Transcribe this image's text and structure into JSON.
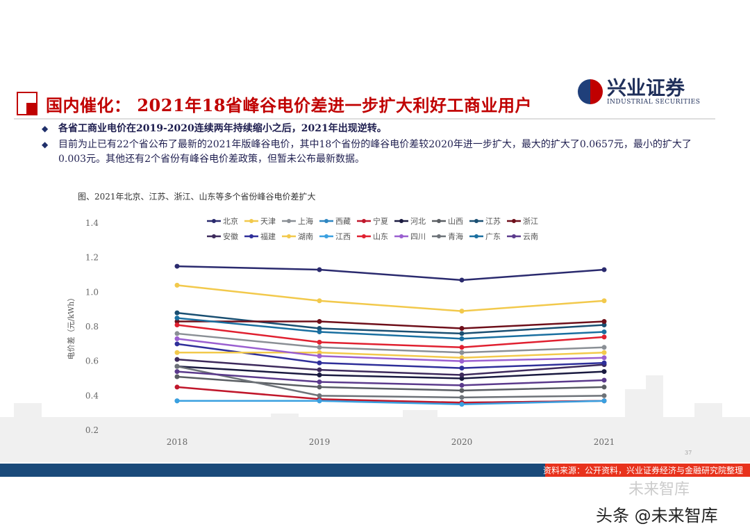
{
  "header": {
    "title": "国内催化：  2021年18省峰谷电价差进一步扩大利好工商业用户",
    "logo_cn": "兴业证券",
    "logo_en": "INDUSTRIAL SECURITIES"
  },
  "bullets": [
    {
      "text": "各省工商业电价在2019-2020连续两年持续缩小之后，2021年出现逆转。"
    },
    {
      "text": "目前为止已有22个省公布了最新的2021年版峰谷电价，其中18个省份的峰谷电价差较2020年进一步扩大，最大的扩大了0.0657元，最小的扩大了0.003元。其他还有2个省份有峰谷电价差政策，但暂未公布最新数据。"
    }
  ],
  "caption": "图、2021年北京、江苏、浙江、山东等多个省份峰谷电价差扩大",
  "footer": {
    "source": "资料来源：公开资料，兴业证券经济与金融研究院整理",
    "page": "37",
    "watermark1": "未来智库",
    "watermark2": "头条 @未来智库"
  },
  "chart_data": {
    "type": "line",
    "title": "",
    "xlabel": "",
    "ylabel": "电价差（元/kWh）",
    "categories": [
      "2018",
      "2019",
      "2020",
      "2021"
    ],
    "ylim": [
      0.2,
      1.4
    ],
    "yticks": [
      "0.2",
      "0.4",
      "0.6",
      "0.8",
      "1.0",
      "1.2",
      "1.4"
    ],
    "legend_position": "top",
    "series": [
      {
        "name": "北京",
        "color": "#2a2a6e",
        "values": [
          1.15,
          1.13,
          1.07,
          1.13
        ]
      },
      {
        "name": "天津",
        "color": "#f2c94c",
        "values": [
          1.04,
          0.95,
          0.89,
          0.95
        ]
      },
      {
        "name": "上海",
        "color": "#8a8f95",
        "values": [
          0.76,
          0.68,
          0.65,
          0.68
        ]
      },
      {
        "name": "西藏",
        "color": "#2e86c1",
        "values": [
          0.37,
          0.37,
          0.36,
          0.37
        ]
      },
      {
        "name": "宁夏",
        "color": "#c0172b",
        "values": [
          0.45,
          0.38,
          0.36,
          0.37
        ]
      },
      {
        "name": "河北",
        "color": "#1a1a40",
        "values": [
          0.57,
          0.52,
          0.5,
          0.54
        ]
      },
      {
        "name": "山西",
        "color": "#5a5e63",
        "values": [
          0.51,
          0.45,
          0.43,
          0.45
        ]
      },
      {
        "name": "江苏",
        "color": "#1a4f72",
        "values": [
          0.88,
          0.79,
          0.76,
          0.81
        ]
      },
      {
        "name": "浙江",
        "color": "#6e0f1a",
        "values": [
          0.83,
          0.83,
          0.79,
          0.83
        ]
      },
      {
        "name": "安徽",
        "color": "#3d2a5c",
        "values": [
          0.61,
          0.55,
          0.52,
          0.58
        ]
      },
      {
        "name": "福建",
        "color": "#2f2f9a",
        "values": [
          0.7,
          0.59,
          0.56,
          0.59
        ]
      },
      {
        "name": "湖南",
        "color": "#f2c94c",
        "values": [
          0.65,
          0.65,
          0.62,
          0.65
        ]
      },
      {
        "name": "江西",
        "color": "#3aa0e0",
        "values": [
          0.37,
          0.37,
          0.35,
          0.37
        ]
      },
      {
        "name": "山东",
        "color": "#e02030",
        "values": [
          0.81,
          0.71,
          0.68,
          0.74
        ]
      },
      {
        "name": "四川",
        "color": "#9a5fd0",
        "values": [
          0.73,
          0.63,
          0.6,
          0.62
        ]
      },
      {
        "name": "青海",
        "color": "#6d7278",
        "values": [
          0.57,
          0.4,
          0.39,
          0.4
        ]
      },
      {
        "name": "广东",
        "color": "#1a6fa0",
        "values": [
          0.85,
          0.77,
          0.73,
          0.77
        ]
      },
      {
        "name": "云南",
        "color": "#5b3a8c",
        "values": [
          0.54,
          0.48,
          0.46,
          0.49
        ]
      }
    ]
  }
}
